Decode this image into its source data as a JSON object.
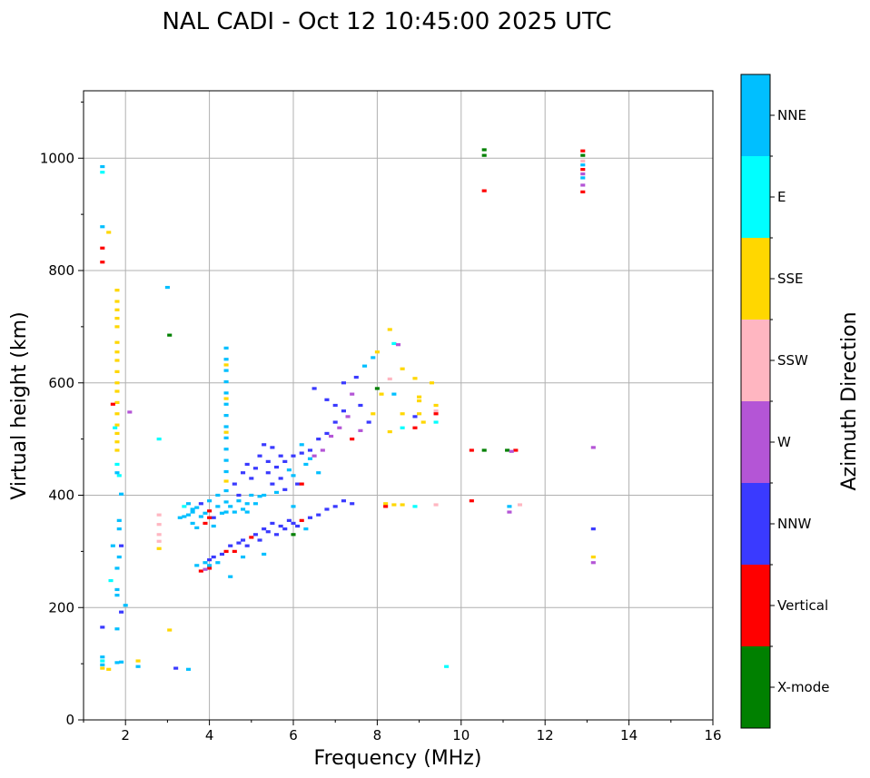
{
  "chart_data": {
    "type": "scatter",
    "title": "NAL CADI - Oct 12 10:45:00 2025 UTC",
    "xlabel": "Frequency (MHz)",
    "ylabel": "Virtual height (km)",
    "xlim": [
      1,
      16
    ],
    "ylim": [
      0,
      1120
    ],
    "xticks": [
      "2",
      "4",
      "6",
      "8",
      "10",
      "12",
      "14",
      "16"
    ],
    "yticks": [
      "0",
      "200",
      "400",
      "600",
      "800",
      "1000"
    ],
    "grid": true,
    "colorbar": {
      "label": "Azimuth Direction",
      "placement": "right",
      "categories": [
        {
          "name": "X-mode",
          "color": "#008000"
        },
        {
          "name": "Vertical",
          "color": "#ff0000"
        },
        {
          "name": "NNW",
          "color": "#3a3aff"
        },
        {
          "name": "W",
          "color": "#b455d6"
        },
        {
          "name": "SSW",
          "color": "#ffb6c1"
        },
        {
          "name": "SSE",
          "color": "#ffd700"
        },
        {
          "name": "E",
          "color": "#00ffff"
        },
        {
          "name": "NNE",
          "color": "#00bfff"
        }
      ]
    },
    "points": [
      [
        1.45,
        985,
        "NNE"
      ],
      [
        1.45,
        975,
        "E"
      ],
      [
        1.45,
        878,
        "NNE"
      ],
      [
        1.45,
        840,
        "Vertical"
      ],
      [
        1.45,
        815,
        "Vertical"
      ],
      [
        1.6,
        868,
        "SSE"
      ],
      [
        1.45,
        165,
        "NNW"
      ],
      [
        1.45,
        112,
        "NNE"
      ],
      [
        1.45,
        105,
        "E"
      ],
      [
        1.45,
        98,
        "NNE"
      ],
      [
        1.45,
        92,
        "SSE"
      ],
      [
        1.6,
        90,
        "SSE"
      ],
      [
        1.8,
        765,
        "SSE"
      ],
      [
        1.8,
        745,
        "SSE"
      ],
      [
        1.8,
        730,
        "SSE"
      ],
      [
        1.8,
        715,
        "SSE"
      ],
      [
        1.8,
        700,
        "SSE"
      ],
      [
        1.8,
        672,
        "SSE"
      ],
      [
        1.8,
        655,
        "SSE"
      ],
      [
        1.8,
        640,
        "SSE"
      ],
      [
        1.8,
        620,
        "SSE"
      ],
      [
        1.8,
        600,
        "SSE"
      ],
      [
        1.8,
        585,
        "SSE"
      ],
      [
        1.8,
        565,
        "SSE"
      ],
      [
        1.8,
        545,
        "SSE"
      ],
      [
        1.8,
        525,
        "SSE"
      ],
      [
        1.8,
        510,
        "SSE"
      ],
      [
        1.8,
        495,
        "SSE"
      ],
      [
        1.8,
        480,
        "SSE"
      ],
      [
        1.75,
        520,
        "E"
      ],
      [
        1.8,
        455,
        "E"
      ],
      [
        1.85,
        435,
        "E"
      ],
      [
        1.8,
        440,
        "NNE"
      ],
      [
        1.9,
        402,
        "NNE"
      ],
      [
        1.85,
        355,
        "NNE"
      ],
      [
        1.85,
        340,
        "NNE"
      ],
      [
        1.7,
        310,
        "NNE"
      ],
      [
        1.85,
        290,
        "NNE"
      ],
      [
        1.9,
        310,
        "NNW"
      ],
      [
        1.8,
        270,
        "NNE"
      ],
      [
        1.8,
        232,
        "NNE"
      ],
      [
        1.8,
        222,
        "NNE"
      ],
      [
        1.65,
        248,
        "E"
      ],
      [
        1.8,
        162,
        "NNE"
      ],
      [
        1.9,
        192,
        "NNW"
      ],
      [
        2.0,
        204,
        "NNE"
      ],
      [
        1.8,
        102,
        "NNE"
      ],
      [
        1.9,
        103,
        "NNE"
      ],
      [
        2.3,
        105,
        "SSE"
      ],
      [
        2.3,
        95,
        "NNE"
      ],
      [
        3.05,
        160,
        "SSE"
      ],
      [
        3.2,
        92,
        "NNW"
      ],
      [
        3.5,
        90,
        "NNE"
      ],
      [
        9.65,
        95,
        "E"
      ],
      [
        1.7,
        562,
        "Vertical"
      ],
      [
        2.1,
        548,
        "W"
      ],
      [
        2.8,
        500,
        "E"
      ],
      [
        3.0,
        770,
        "NNE"
      ],
      [
        3.05,
        685,
        "X-mode"
      ],
      [
        2.8,
        365,
        "SSW"
      ],
      [
        2.8,
        348,
        "SSW"
      ],
      [
        2.8,
        330,
        "SSW"
      ],
      [
        2.8,
        318,
        "SSW"
      ],
      [
        2.8,
        305,
        "SSE"
      ],
      [
        4.4,
        662,
        "NNE"
      ],
      [
        4.4,
        642,
        "NNE"
      ],
      [
        4.4,
        622,
        "NNE"
      ],
      [
        4.4,
        602,
        "NNE"
      ],
      [
        4.4,
        582,
        "NNE"
      ],
      [
        4.4,
        562,
        "NNE"
      ],
      [
        4.4,
        542,
        "NNE"
      ],
      [
        4.4,
        522,
        "NNE"
      ],
      [
        4.4,
        502,
        "NNE"
      ],
      [
        4.4,
        482,
        "NNE"
      ],
      [
        4.4,
        462,
        "NNE"
      ],
      [
        4.4,
        442,
        "NNE"
      ],
      [
        4.4,
        425,
        "SSE"
      ],
      [
        4.4,
        408,
        "NNE"
      ],
      [
        4.4,
        388,
        "NNE"
      ],
      [
        4.4,
        370,
        "NNE"
      ],
      [
        4.4,
        632,
        "SSE"
      ],
      [
        4.4,
        572,
        "SSE"
      ],
      [
        4.4,
        512,
        "SSE"
      ],
      [
        3.3,
        360,
        "NNE"
      ],
      [
        3.4,
        362,
        "NNE"
      ],
      [
        3.5,
        365,
        "NNE"
      ],
      [
        3.6,
        370,
        "NNE"
      ],
      [
        3.6,
        350,
        "NNE"
      ],
      [
        3.7,
        342,
        "NNE"
      ],
      [
        3.7,
        378,
        "NNE"
      ],
      [
        3.8,
        362,
        "NNE"
      ],
      [
        3.8,
        385,
        "NNW"
      ],
      [
        3.9,
        368,
        "NNE"
      ],
      [
        3.9,
        350,
        "Vertical"
      ],
      [
        4.0,
        372,
        "Vertical"
      ],
      [
        4.0,
        390,
        "NNE"
      ],
      [
        4.1,
        360,
        "NNW"
      ],
      [
        4.2,
        380,
        "NNE"
      ],
      [
        4.2,
        400,
        "NNE"
      ],
      [
        4.3,
        368,
        "NNE"
      ],
      [
        4.5,
        380,
        "NNE"
      ],
      [
        4.6,
        370,
        "NNE"
      ],
      [
        4.7,
        390,
        "NNE"
      ],
      [
        4.8,
        375,
        "NNE"
      ],
      [
        4.9,
        385,
        "NNE"
      ],
      [
        5.0,
        400,
        "NNE"
      ],
      [
        5.2,
        398,
        "NNE"
      ],
      [
        4.1,
        345,
        "NNE"
      ],
      [
        3.5,
        385,
        "NNE"
      ],
      [
        3.4,
        380,
        "E"
      ],
      [
        4.0,
        360,
        "Vertical"
      ],
      [
        3.6,
        375,
        "NNE"
      ],
      [
        4.6,
        420,
        "NNW"
      ],
      [
        4.8,
        440,
        "NNW"
      ],
      [
        4.9,
        455,
        "NNW"
      ],
      [
        5.0,
        430,
        "NNW"
      ],
      [
        5.1,
        448,
        "NNW"
      ],
      [
        5.2,
        470,
        "NNW"
      ],
      [
        5.3,
        490,
        "NNW"
      ],
      [
        5.4,
        460,
        "NNW"
      ],
      [
        5.5,
        485,
        "NNW"
      ],
      [
        5.6,
        450,
        "NNW"
      ],
      [
        5.7,
        470,
        "NNW"
      ],
      [
        5.8,
        460,
        "NNW"
      ],
      [
        6.0,
        470,
        "NNW"
      ],
      [
        6.2,
        475,
        "NNW"
      ],
      [
        6.4,
        480,
        "NNW"
      ],
      [
        6.6,
        500,
        "NNW"
      ],
      [
        6.8,
        510,
        "NNW"
      ],
      [
        7.0,
        530,
        "NNW"
      ],
      [
        7.2,
        550,
        "NNW"
      ],
      [
        7.4,
        580,
        "W"
      ],
      [
        7.6,
        560,
        "NNW"
      ],
      [
        7.8,
        530,
        "NNW"
      ],
      [
        5.5,
        420,
        "NNW"
      ],
      [
        5.8,
        410,
        "NNW"
      ],
      [
        6.1,
        420,
        "NNW"
      ],
      [
        5.4,
        440,
        "NNW"
      ],
      [
        5.7,
        430,
        "NNW"
      ],
      [
        6.3,
        455,
        "NNE"
      ],
      [
        6.5,
        470,
        "W"
      ],
      [
        6.7,
        480,
        "W"
      ],
      [
        6.9,
        505,
        "W"
      ],
      [
        7.1,
        520,
        "W"
      ],
      [
        7.3,
        540,
        "W"
      ],
      [
        6.5,
        590,
        "NNW"
      ],
      [
        6.8,
        570,
        "NNW"
      ],
      [
        7.0,
        560,
        "NNW"
      ],
      [
        7.2,
        600,
        "NNW"
      ],
      [
        7.5,
        610,
        "NNW"
      ],
      [
        7.7,
        630,
        "NNE"
      ],
      [
        6.2,
        490,
        "NNE"
      ],
      [
        6.4,
        465,
        "NNE"
      ],
      [
        6.6,
        440,
        "NNE"
      ],
      [
        6.0,
        435,
        "NNE"
      ],
      [
        5.9,
        445,
        "NNE"
      ],
      [
        7.4,
        500,
        "Vertical"
      ],
      [
        7.6,
        515,
        "W"
      ],
      [
        7.9,
        545,
        "SSE"
      ],
      [
        8.1,
        580,
        "SSE"
      ],
      [
        4.7,
        400,
        "NNW"
      ],
      [
        4.9,
        370,
        "NNE"
      ],
      [
        5.1,
        385,
        "NNE"
      ],
      [
        5.3,
        400,
        "NNE"
      ],
      [
        5.6,
        405,
        "NNE"
      ],
      [
        3.7,
        275,
        "NNE"
      ],
      [
        3.8,
        265,
        "Vertical"
      ],
      [
        3.9,
        280,
        "NNE"
      ],
      [
        4.0,
        285,
        "NNW"
      ],
      [
        4.0,
        270,
        "Vertical"
      ],
      [
        4.1,
        290,
        "NNW"
      ],
      [
        4.2,
        280,
        "NNE"
      ],
      [
        4.3,
        295,
        "NNW"
      ],
      [
        4.4,
        300,
        "Vertical"
      ],
      [
        4.5,
        310,
        "NNW"
      ],
      [
        4.6,
        300,
        "Vertical"
      ],
      [
        4.7,
        315,
        "NNW"
      ],
      [
        4.8,
        320,
        "NNW"
      ],
      [
        4.9,
        310,
        "NNW"
      ],
      [
        5.0,
        325,
        "Vertical"
      ],
      [
        5.1,
        330,
        "NNW"
      ],
      [
        5.2,
        320,
        "NNW"
      ],
      [
        5.3,
        340,
        "NNW"
      ],
      [
        5.4,
        335,
        "NNW"
      ],
      [
        5.5,
        350,
        "NNW"
      ],
      [
        5.6,
        330,
        "NNW"
      ],
      [
        5.7,
        345,
        "NNW"
      ],
      [
        5.8,
        340,
        "NNW"
      ],
      [
        5.9,
        355,
        "NNW"
      ],
      [
        6.0,
        350,
        "NNW"
      ],
      [
        6.1,
        345,
        "NNW"
      ],
      [
        6.2,
        355,
        "Vertical"
      ],
      [
        6.3,
        340,
        "NNE"
      ],
      [
        6.4,
        360,
        "NNW"
      ],
      [
        6.6,
        365,
        "NNW"
      ],
      [
        6.8,
        375,
        "NNW"
      ],
      [
        7.0,
        380,
        "NNW"
      ],
      [
        7.2,
        390,
        "NNW"
      ],
      [
        7.4,
        385,
        "NNW"
      ],
      [
        5.3,
        295,
        "NNE"
      ],
      [
        4.8,
        290,
        "NNE"
      ],
      [
        4.5,
        255,
        "NNE"
      ],
      [
        4.0,
        275,
        "NNE"
      ],
      [
        3.9,
        268,
        "W"
      ],
      [
        6.2,
        420,
        "Vertical"
      ],
      [
        6.0,
        380,
        "NNE"
      ],
      [
        6.0,
        330,
        "X-mode"
      ],
      [
        8.3,
        695,
        "SSE"
      ],
      [
        8.0,
        655,
        "SSE"
      ],
      [
        7.9,
        645,
        "NNE"
      ],
      [
        8.4,
        670,
        "E"
      ],
      [
        8.5,
        668,
        "W"
      ],
      [
        8.6,
        625,
        "SSE"
      ],
      [
        8.9,
        608,
        "SSE"
      ],
      [
        9.3,
        600,
        "SSE"
      ],
      [
        8.3,
        607,
        "SSW"
      ],
      [
        8.4,
        580,
        "NNE"
      ],
      [
        8.0,
        590,
        "X-mode"
      ],
      [
        9.0,
        575,
        "SSE"
      ],
      [
        9.0,
        568,
        "SSE"
      ],
      [
        9.4,
        560,
        "SSE"
      ],
      [
        9.4,
        550,
        "SSW"
      ],
      [
        9.0,
        545,
        "SSE"
      ],
      [
        8.9,
        540,
        "NNW"
      ],
      [
        9.1,
        530,
        "SSE"
      ],
      [
        8.9,
        520,
        "Vertical"
      ],
      [
        9.4,
        530,
        "E"
      ],
      [
        9.4,
        545,
        "Vertical"
      ],
      [
        8.6,
        545,
        "SSE"
      ],
      [
        8.6,
        520,
        "E"
      ],
      [
        8.3,
        513,
        "SSE"
      ],
      [
        8.2,
        385,
        "SSE"
      ],
      [
        8.4,
        383,
        "SSE"
      ],
      [
        8.6,
        383,
        "SSE"
      ],
      [
        8.9,
        380,
        "E"
      ],
      [
        9.4,
        383,
        "SSW"
      ],
      [
        8.2,
        380,
        "Vertical"
      ],
      [
        10.25,
        480,
        "Vertical"
      ],
      [
        10.55,
        480,
        "X-mode"
      ],
      [
        11.1,
        480,
        "X-mode"
      ],
      [
        11.3,
        480,
        "Vertical"
      ],
      [
        11.2,
        478,
        "W"
      ],
      [
        10.25,
        390,
        "Vertical"
      ],
      [
        11.15,
        380,
        "NNE"
      ],
      [
        11.4,
        383,
        "SSW"
      ],
      [
        11.15,
        370,
        "W"
      ],
      [
        10.55,
        1015,
        "X-mode"
      ],
      [
        10.55,
        1005,
        "X-mode"
      ],
      [
        10.55,
        942,
        "Vertical"
      ],
      [
        12.9,
        1013,
        "Vertical"
      ],
      [
        12.9,
        1005,
        "X-mode"
      ],
      [
        12.9,
        995,
        "SSW"
      ],
      [
        12.9,
        988,
        "NNE"
      ],
      [
        12.9,
        980,
        "Vertical"
      ],
      [
        12.9,
        972,
        "W"
      ],
      [
        12.9,
        965,
        "NNE"
      ],
      [
        12.9,
        952,
        "W"
      ],
      [
        12.9,
        940,
        "Vertical"
      ],
      [
        13.15,
        485,
        "W"
      ],
      [
        13.15,
        340,
        "NNW"
      ],
      [
        13.15,
        290,
        "SSE"
      ],
      [
        13.15,
        280,
        "W"
      ]
    ]
  }
}
